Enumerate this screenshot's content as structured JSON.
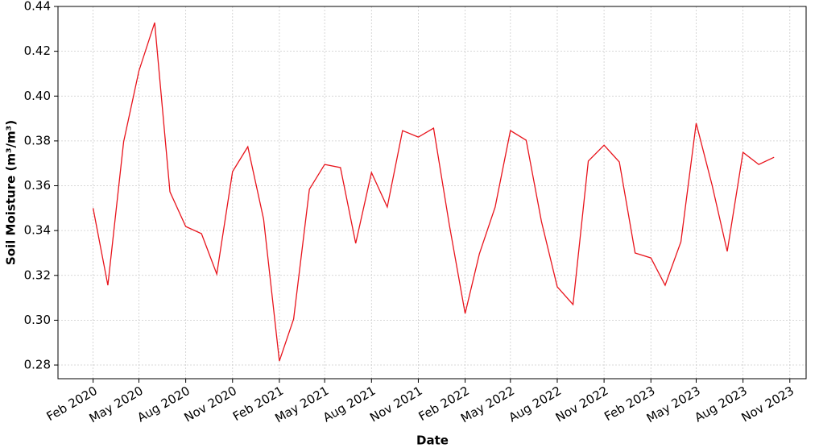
{
  "chart_data": {
    "type": "line",
    "xlabel": "Date",
    "ylabel": "Soil Moisture (m³/m³)",
    "x": [
      "2020-02",
      "2020-03",
      "2020-04",
      "2020-05",
      "2020-06",
      "2020-07",
      "2020-08",
      "2020-09",
      "2020-10",
      "2020-11",
      "2020-12",
      "2021-01",
      "2021-02",
      "2021-03",
      "2021-04",
      "2021-05",
      "2021-06",
      "2021-07",
      "2021-08",
      "2021-09",
      "2021-10",
      "2021-11",
      "2021-12",
      "2022-01",
      "2022-02",
      "2022-03",
      "2022-04",
      "2022-05",
      "2022-06",
      "2022-07",
      "2022-08",
      "2022-09",
      "2022-10",
      "2022-11",
      "2022-12",
      "2023-01",
      "2023-02",
      "2023-03",
      "2023-04",
      "2023-05",
      "2023-06",
      "2023-07",
      "2023-08",
      "2023-09",
      "2023-10"
    ],
    "series": [
      {
        "name": "Soil Moisture",
        "color": "#e8141c",
        "values": [
          0.35,
          0.3156,
          0.3796,
          0.4112,
          0.4328,
          0.3573,
          0.3418,
          0.3386,
          0.3206,
          0.3663,
          0.3774,
          0.3451,
          0.2818,
          0.3005,
          0.3584,
          0.3695,
          0.3681,
          0.3343,
          0.3659,
          0.3505,
          0.3846,
          0.3817,
          0.3857,
          0.3425,
          0.303,
          0.3296,
          0.3505,
          0.3846,
          0.3803,
          0.344,
          0.3149,
          0.307,
          0.371,
          0.3781,
          0.3706,
          0.33,
          0.3278,
          0.3156,
          0.335,
          0.3879,
          0.3605,
          0.3307,
          0.3749,
          0.3695,
          0.3727
        ]
      }
    ],
    "xlim": [
      "2019-11-24",
      "2023-12-03"
    ],
    "xticks": [
      {
        "value": "2020-02",
        "label": "Feb 2020"
      },
      {
        "value": "2020-05",
        "label": "May 2020"
      },
      {
        "value": "2020-08",
        "label": "Aug 2020"
      },
      {
        "value": "2020-11",
        "label": "Nov 2020"
      },
      {
        "value": "2021-02",
        "label": "Feb 2021"
      },
      {
        "value": "2021-05",
        "label": "May 2021"
      },
      {
        "value": "2021-08",
        "label": "Aug 2021"
      },
      {
        "value": "2021-11",
        "label": "Nov 2021"
      },
      {
        "value": "2022-02",
        "label": "Feb 2022"
      },
      {
        "value": "2022-05",
        "label": "May 2022"
      },
      {
        "value": "2022-08",
        "label": "Aug 2022"
      },
      {
        "value": "2022-11",
        "label": "Nov 2022"
      },
      {
        "value": "2023-02",
        "label": "Feb 2023"
      },
      {
        "value": "2023-05",
        "label": "May 2023"
      },
      {
        "value": "2023-08",
        "label": "Aug 2023"
      },
      {
        "value": "2023-11",
        "label": "Nov 2023"
      }
    ],
    "ylim": [
      0.2739,
      0.44
    ],
    "yticks": [
      {
        "value": 0.28,
        "label": "0.28"
      },
      {
        "value": 0.3,
        "label": "0.30"
      },
      {
        "value": 0.32,
        "label": "0.32"
      },
      {
        "value": 0.34,
        "label": "0.34"
      },
      {
        "value": 0.36,
        "label": "0.36"
      },
      {
        "value": 0.38,
        "label": "0.38"
      },
      {
        "value": 0.4,
        "label": "0.40"
      },
      {
        "value": 0.42,
        "label": "0.42"
      },
      {
        "value": 0.44,
        "label": "0.44"
      }
    ],
    "grid": true
  }
}
